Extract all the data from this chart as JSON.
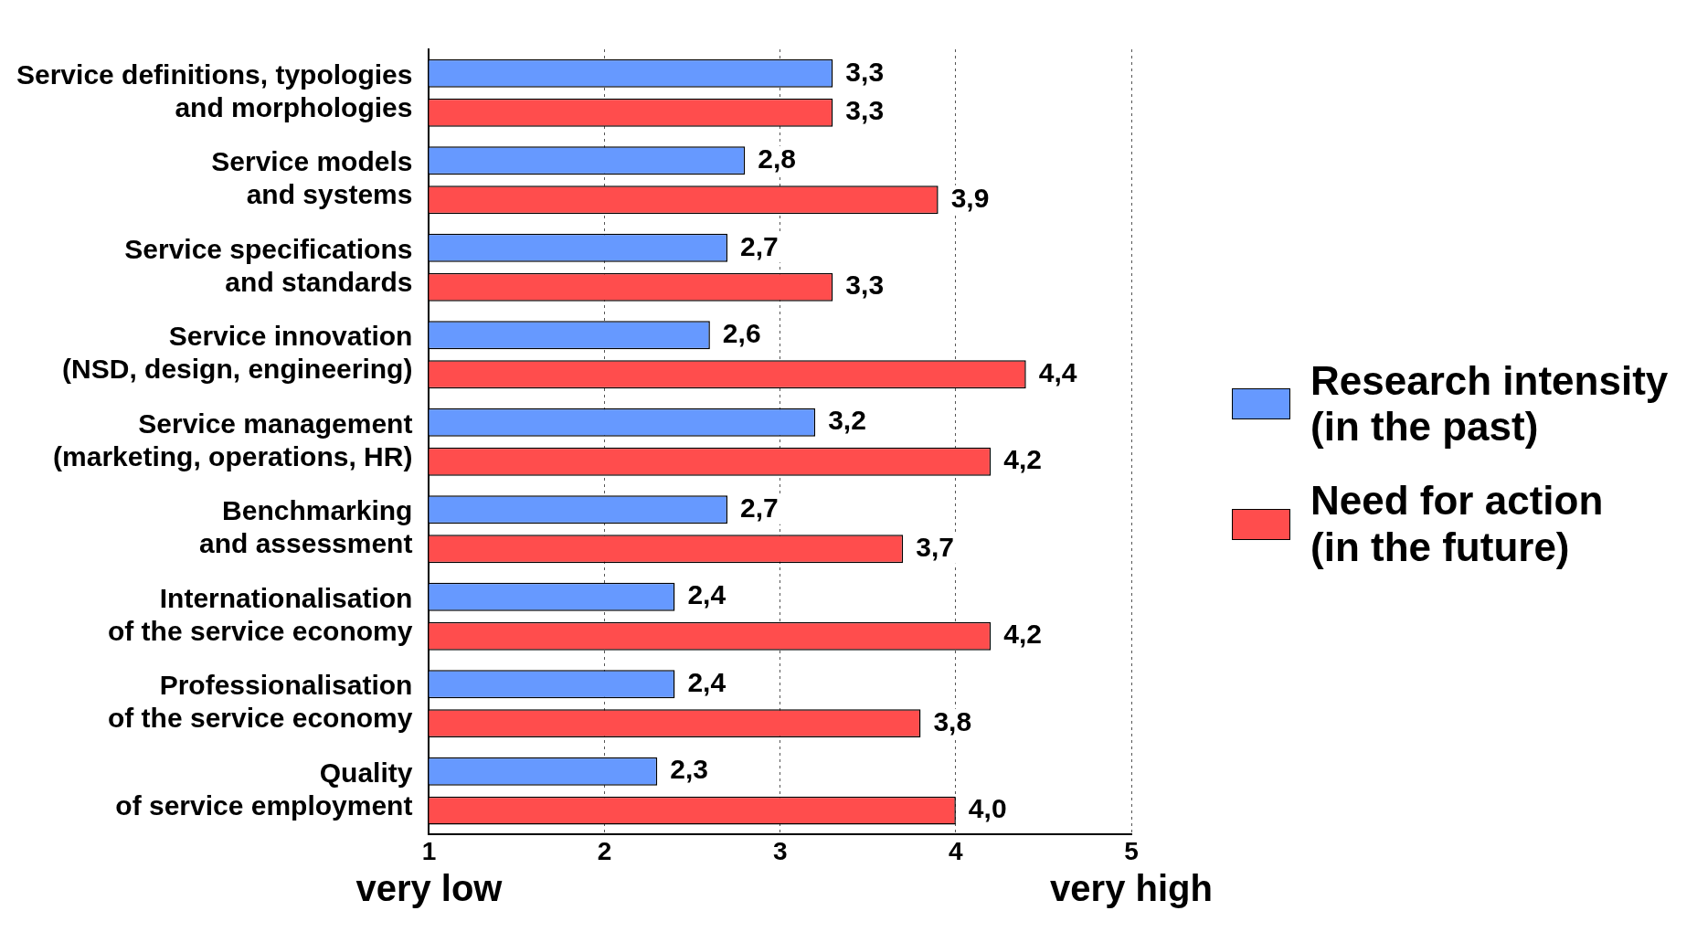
{
  "chart_data": {
    "type": "bar",
    "orientation": "horizontal",
    "categories": [
      "Service definitions, typologies\nand morphologies",
      "Service models\nand systems",
      "Service specifications\nand standards",
      "Service innovation\n(NSD, design, engineering)",
      "Service management\n(marketing, operations, HR)",
      "Benchmarking\nand assessment",
      "Internationalisation\nof the service economy",
      "Professionalisation\nof the service economy",
      "Quality\nof service employment"
    ],
    "series": [
      {
        "name": "Research intensity\n(in the past)",
        "color": "#6699ff",
        "values": [
          3.3,
          2.8,
          2.7,
          2.6,
          3.2,
          2.7,
          2.4,
          2.4,
          2.3
        ],
        "value_labels": [
          "3,3",
          "2,8",
          "2,7",
          "2,6",
          "3,2",
          "2,7",
          "2,4",
          "2,4",
          "2,3"
        ]
      },
      {
        "name": "Need for action\n(in the future)",
        "color": "#ff4d4d",
        "values": [
          3.3,
          3.9,
          3.3,
          4.4,
          4.2,
          3.7,
          4.2,
          3.8,
          4.0
        ],
        "value_labels": [
          "3,3",
          "3,9",
          "3,3",
          "4,4",
          "4,2",
          "3,7",
          "4,2",
          "3,8",
          "4,0"
        ]
      }
    ],
    "xlim": [
      1,
      5
    ],
    "xticks": [
      1,
      2,
      3,
      4,
      5
    ],
    "grid": "x",
    "legend": "right",
    "annotations": [
      "very low",
      "very high"
    ]
  }
}
